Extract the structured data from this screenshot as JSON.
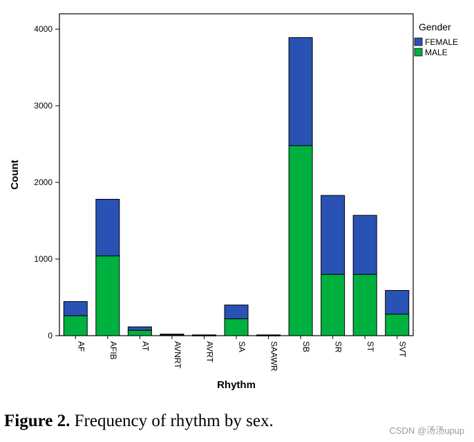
{
  "chart_data": {
    "type": "bar",
    "stacked": true,
    "categories": [
      "AF",
      "AFIB",
      "AT",
      "AVNRT",
      "AVRT",
      "SA",
      "SAAWR",
      "SB",
      "SR",
      "ST",
      "SVT"
    ],
    "series": [
      {
        "name": "MALE",
        "color": "#00b140",
        "values": [
          260,
          1040,
          70,
          10,
          5,
          220,
          5,
          2480,
          800,
          800,
          280
        ]
      },
      {
        "name": "FEMALE",
        "color": "#2a52b5",
        "values": [
          185,
          740,
          45,
          10,
          5,
          180,
          5,
          1410,
          1030,
          770,
          310
        ]
      }
    ],
    "xlabel": "Rhythm",
    "ylabel": "Count",
    "ylim": [
      0,
      4200
    ],
    "yticks": [
      0,
      1000,
      2000,
      3000,
      4000
    ],
    "grid": false,
    "legend": {
      "title": "Gender",
      "placement": "right",
      "entries": [
        "FEMALE",
        "MALE"
      ]
    }
  },
  "caption": {
    "label": "Figure 2.",
    "text": " Frequency of rhythm by sex."
  },
  "watermark": "CSDN @汤汤upup"
}
